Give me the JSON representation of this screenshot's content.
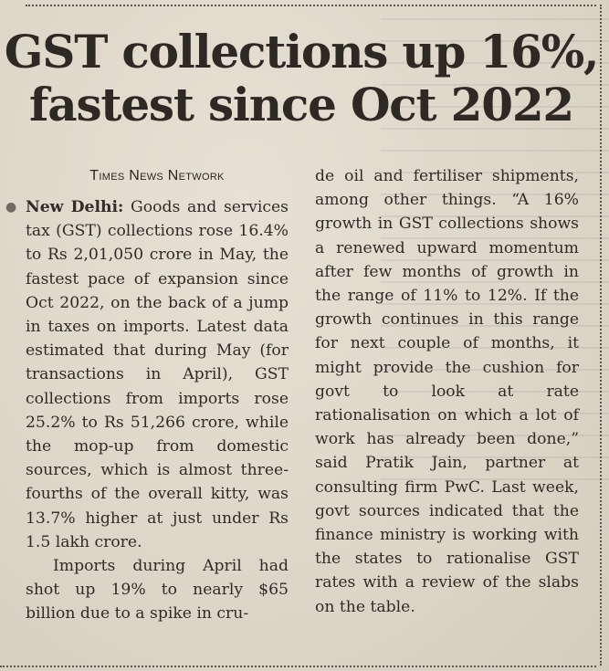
{
  "article": {
    "headline": "GST collections up 16%, fastest since Oct 2022",
    "byline": "Times News Network",
    "dateline": "New Delhi:",
    "paragraph1": "Goods and services tax (GST) collections rose 16.4% to Rs 2,01,050 crore in May, the fastest pace of expansion since Oct 2022, on the back of a jump in taxes on imports. Latest data estimated that during May (for transactions in April), GST collections from imports rose 25.2% to Rs 51,266 crore, while the mop-up from domestic sources, which is almost three-fourths of the overall kitty, was 13.7% higher at just under Rs 1.5 lakh crore.",
    "paragraph2_part1": "Imports during April had shot up 19% to nearly $65 billion due to a spike in cru-",
    "paragraph2_part2": "de oil and fertiliser shipments, among other things. “A 16% growth in GST collections shows a renewed upward momentum after few months of growth in the range of 11% to 12%. If the growth continues in this range for next couple of months, it might provide the cushion for govt to look at rate rationalisation on which a lot of work has already been done,” said Pratik Jain, partner at consulting firm PwC. Last week, govt sources indicated that the finance ministry is working with the states to rationalise GST rates with a review of the slabs on the table."
  }
}
